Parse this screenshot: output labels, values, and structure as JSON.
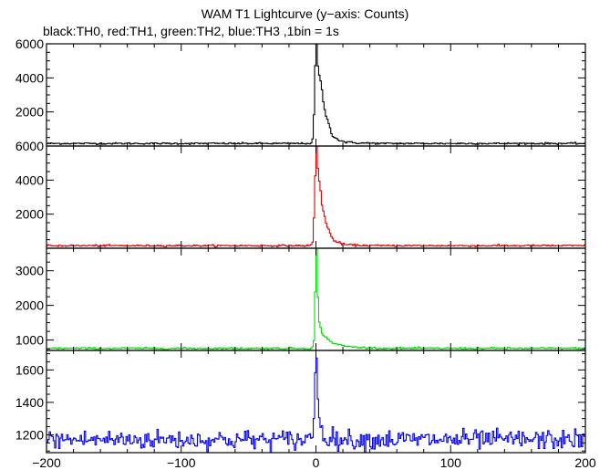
{
  "chart_data": {
    "title": "WAM T1 Lightcurve (y−axis: Counts)",
    "subtitle": "black:TH0, red:TH1, green:TH2, blue:TH3 ,1bin = 1s",
    "type": "line",
    "xlim": [
      -200,
      200
    ],
    "x_ticks": [
      -200,
      -100,
      0,
      100,
      200
    ],
    "x_tick_labels": [
      "−200",
      "−100",
      "0",
      "100",
      "200"
    ],
    "panels": [
      {
        "name": "TH0",
        "color": "#000000",
        "ylim": [
          0,
          6000
        ],
        "y_ticks": [
          2000,
          4000,
          6000
        ],
        "baseline": 150,
        "noise": 25,
        "peak": 5950,
        "profile": [
          [
            -4,
            150
          ],
          [
            -2,
            400
          ],
          [
            -1,
            3200
          ],
          [
            0,
            5950
          ],
          [
            1,
            4900
          ],
          [
            2,
            4400
          ],
          [
            3,
            3900
          ],
          [
            5,
            2900
          ],
          [
            8,
            1600
          ],
          [
            12,
            700
          ],
          [
            16,
            380
          ],
          [
            22,
            230
          ],
          [
            30,
            180
          ],
          [
            45,
            160
          ]
        ]
      },
      {
        "name": "TH1",
        "color": "#e00000",
        "ylim": [
          0,
          6000
        ],
        "y_ticks": [
          2000,
          4000,
          6000
        ],
        "baseline": 150,
        "noise": 25,
        "peak": 5900,
        "profile": [
          [
            -4,
            150
          ],
          [
            -2,
            400
          ],
          [
            -1,
            3000
          ],
          [
            0,
            5900
          ],
          [
            1,
            5000
          ],
          [
            2,
            4400
          ],
          [
            3,
            3600
          ],
          [
            5,
            2400
          ],
          [
            8,
            1300
          ],
          [
            12,
            600
          ],
          [
            16,
            330
          ],
          [
            22,
            210
          ],
          [
            30,
            170
          ],
          [
            45,
            155
          ]
        ]
      },
      {
        "name": "TH2",
        "color": "#00dd00",
        "ylim": [
          700,
          3650
        ],
        "y_ticks": [
          1000,
          2000,
          3000
        ],
        "baseline": 760,
        "noise": 14,
        "peak": 3650,
        "profile": [
          [
            -4,
            760
          ],
          [
            -2,
            830
          ],
          [
            -1,
            1100
          ],
          [
            0,
            3650
          ],
          [
            1,
            2800
          ],
          [
            2,
            1600
          ],
          [
            4,
            1250
          ],
          [
            7,
            1080
          ],
          [
            12,
            930
          ],
          [
            20,
            830
          ],
          [
            30,
            790
          ],
          [
            45,
            770
          ]
        ]
      },
      {
        "name": "TH3",
        "color": "#0000ee",
        "ylim": [
          1090,
          1720
        ],
        "y_ticks": [
          1200,
          1400,
          1600
        ],
        "baseline": 1170,
        "noise": 30,
        "peak": 1710,
        "profile": [
          [
            -5,
            1170
          ],
          [
            -2,
            1230
          ],
          [
            -1,
            1400
          ],
          [
            0,
            1710
          ],
          [
            1,
            1520
          ],
          [
            2,
            1350
          ],
          [
            3,
            1260
          ],
          [
            5,
            1210
          ],
          [
            10,
            1180
          ],
          [
            20,
            1170
          ]
        ]
      }
    ]
  }
}
